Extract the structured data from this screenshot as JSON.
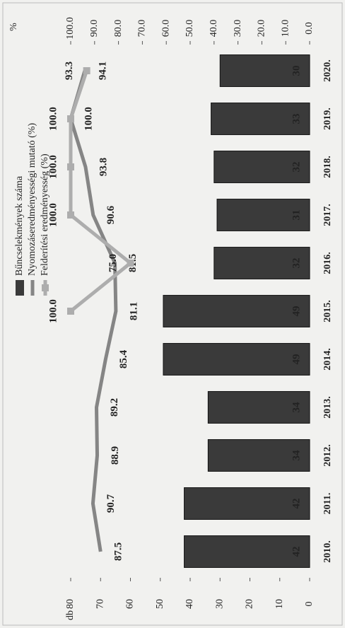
{
  "chart_data": {
    "type": "bar-line",
    "categories": [
      "2010.",
      "2011.",
      "2012.",
      "2013.",
      "2014.",
      "2015.",
      "2016.",
      "2017.",
      "2018.",
      "2019.",
      "2020."
    ],
    "series": [
      {
        "name": "Bűncselekmények száma",
        "type": "bar",
        "color": "#3a3a3a",
        "values": [
          42,
          42,
          34,
          34,
          49,
          49,
          32,
          31,
          32,
          33,
          30
        ]
      },
      {
        "name": "Nyomozáseredményességi mutató (%)",
        "type": "line",
        "axis": "y2",
        "color": "#858585",
        "values": [
          87.5,
          90.7,
          88.9,
          89.2,
          85.4,
          81.1,
          81.5,
          90.6,
          93.8,
          100.0,
          94.1
        ],
        "value_labels": [
          "87.5",
          "90.7",
          "88.9",
          "89.2",
          "85.4",
          "81.1",
          "81.5",
          "90.6",
          "93.8",
          "100.0",
          "94.1"
        ]
      },
      {
        "name": "Felderítési eredményesség (%)",
        "type": "line",
        "axis": "y2",
        "color": "#adadad",
        "marker": true,
        "values": [
          null,
          null,
          null,
          null,
          null,
          100.0,
          75.0,
          100.0,
          100.0,
          100.0,
          93.3
        ],
        "value_labels": [
          null,
          null,
          null,
          null,
          null,
          "100.0",
          "75.0",
          "100.0",
          "100.0",
          "100.0",
          "93.3"
        ]
      }
    ],
    "ylabel": "db",
    "y2label": "%",
    "ylim": [
      0,
      80
    ],
    "yticks": [
      0,
      10,
      20,
      30,
      40,
      50,
      60,
      70,
      80
    ],
    "y2lim": [
      0,
      100
    ],
    "y2ticks": [
      {
        "value": 0,
        "label": "0.0"
      },
      {
        "value": 10,
        "label": "10.0"
      },
      {
        "value": 20,
        "label": "20.0"
      },
      {
        "value": 30,
        "label": "30.0"
      },
      {
        "value": 40,
        "label": "40.0"
      },
      {
        "value": 50,
        "label": "50.0"
      },
      {
        "value": 60,
        "label": "60.0"
      },
      {
        "value": 70,
        "label": "70.0"
      },
      {
        "value": 80,
        "label": "80.0"
      },
      {
        "value": 90,
        "label": "90.0"
      },
      {
        "value": 100,
        "label": "100.0"
      }
    ]
  }
}
